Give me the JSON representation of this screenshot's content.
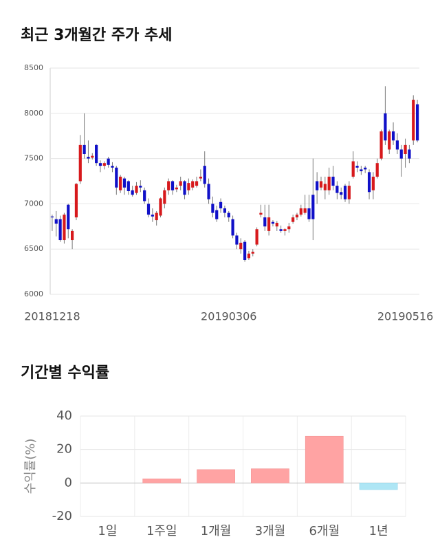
{
  "chart_data": [
    {
      "type": "candlestick",
      "title": "최근 3개월간 주가 추세",
      "categories": [
        "20181218",
        null,
        null,
        null,
        null,
        null,
        null,
        null,
        null,
        null,
        null,
        null,
        null,
        null,
        null,
        null,
        null,
        null,
        null,
        null,
        null,
        null,
        null,
        null,
        null,
        null,
        null,
        null,
        null,
        null,
        null,
        null,
        null,
        null,
        null,
        null,
        null,
        null,
        null,
        null,
        null,
        null,
        null,
        null,
        "20190306",
        null,
        null,
        null,
        null,
        null,
        null,
        null,
        null,
        null,
        null,
        null,
        null,
        null,
        null,
        null,
        null,
        null,
        null,
        null,
        null,
        null,
        null,
        null,
        null,
        null,
        null,
        null,
        null,
        null,
        null,
        null,
        null,
        null,
        null,
        null,
        null,
        null,
        null,
        null,
        null,
        null,
        null,
        null,
        "20190516",
        null,
        null,
        null
      ],
      "open": [
        6860,
        6830,
        6830,
        6600,
        6990,
        6600,
        6850,
        7250,
        7650,
        7520,
        7510,
        7650,
        7450,
        7420,
        7500,
        7420,
        7400,
        7150,
        7280,
        7250,
        7150,
        7120,
        7200,
        7150,
        7000,
        6880,
        6820,
        6870,
        7000,
        7150,
        7250,
        7160,
        7200,
        7250,
        7150,
        7180,
        7200,
        7280,
        7420,
        7220,
        7000,
        6930,
        7020,
        6950,
        6900,
        6830,
        6650,
        6500,
        6580,
        6400,
        6450,
        6550,
        6880,
        6850,
        6700,
        6800,
        6750,
        6720,
        6700,
        6720,
        6800,
        6850,
        6880,
        6900,
        6950,
        7100,
        7250,
        7180,
        7150,
        7150,
        7300,
        7200,
        7130,
        7200,
        7050,
        7300,
        7420,
        7380,
        7400,
        7350,
        7150,
        7300,
        7500,
        8000,
        7600,
        7800,
        7700,
        7600,
        7550,
        7600,
        7700,
        8100
      ],
      "high": [
        6880,
        6920,
        6870,
        6900,
        7000,
        6720,
        7230,
        7760,
        8000,
        7700,
        7560,
        7660,
        7480,
        7470,
        7520,
        7460,
        7420,
        7320,
        7300,
        7260,
        7200,
        7240,
        7260,
        7180,
        7060,
        6950,
        6920,
        7070,
        7180,
        7280,
        7260,
        7210,
        7300,
        7260,
        7280,
        7270,
        7300,
        7380,
        7580,
        7280,
        7080,
        6980,
        7060,
        6980,
        6920,
        6870,
        6680,
        6620,
        6600,
        6480,
        6500,
        6740,
        6990,
        6990,
        6990,
        6820,
        6810,
        6760,
        6730,
        6790,
        6880,
        6900,
        6990,
        7100,
        7100,
        7500,
        7350,
        7300,
        7300,
        7400,
        7420,
        7250,
        7180,
        7220,
        7250,
        7580,
        7470,
        7420,
        7420,
        7380,
        7350,
        7500,
        7820,
        8300,
        7820,
        7900,
        7780,
        7650,
        7720,
        7650,
        8200,
        8150
      ],
      "low": [
        6700,
        6640,
        6580,
        6560,
        6620,
        6500,
        6820,
        7220,
        7500,
        7450,
        7490,
        7420,
        7350,
        7380,
        7400,
        7350,
        7100,
        7120,
        7100,
        7100,
        7080,
        7100,
        7130,
        7000,
        6850,
        6800,
        6760,
        6850,
        6950,
        7100,
        7100,
        7130,
        7150,
        7050,
        7100,
        7150,
        7180,
        7250,
        7180,
        7000,
        6850,
        6800,
        6900,
        6850,
        6800,
        6620,
        6500,
        6450,
        6360,
        6380,
        6420,
        6530,
        6850,
        6700,
        6650,
        6750,
        6700,
        6680,
        6650,
        6680,
        6780,
        6820,
        6860,
        6880,
        6800,
        6600,
        7000,
        7150,
        7050,
        7100,
        7150,
        7050,
        7050,
        7020,
        7000,
        7280,
        7350,
        7320,
        7340,
        7050,
        7050,
        7280,
        7480,
        7650,
        7550,
        7650,
        7550,
        7300,
        7400,
        7450,
        7650,
        7680
      ],
      "close": [
        6850,
        6780,
        6600,
        6880,
        6720,
        6700,
        7220,
        7650,
        7550,
        7500,
        7530,
        7450,
        7420,
        7450,
        7430,
        7400,
        7180,
        7300,
        7180,
        7140,
        7100,
        7200,
        7180,
        7030,
        6880,
        6860,
        6900,
        7060,
        7150,
        7250,
        7150,
        7180,
        7250,
        7100,
        7230,
        7250,
        7250,
        7300,
        7220,
        7050,
        6900,
        6830,
        6950,
        6900,
        6850,
        6650,
        6550,
        6570,
        6380,
        6450,
        6470,
        6720,
        6900,
        6750,
        6850,
        6780,
        6790,
        6700,
        6720,
        6750,
        6850,
        6880,
        6950,
        6950,
        6830,
        6830,
        7150,
        7250,
        7220,
        7300,
        7200,
        7120,
        7100,
        7050,
        7200,
        7470,
        7400,
        7360,
        7380,
        7130,
        7300,
        7450,
        7800,
        7700,
        7800,
        7700,
        7600,
        7500,
        7650,
        7500,
        8150,
        7700
      ],
      "up_color": "#d7191c",
      "down_color": "#1010c8",
      "ylim": [
        6000,
        8500
      ],
      "yticks": [
        6000,
        6500,
        7000,
        7500,
        8000,
        8500
      ],
      "grid": true
    },
    {
      "type": "bar",
      "title": "기간별 수익률",
      "ylabel": "수익률(%)",
      "categories": [
        "1일",
        "1주일",
        "1개월",
        "3개월",
        "6개월",
        "1년"
      ],
      "values": [
        0,
        2.5,
        8,
        8.5,
        28,
        -4
      ],
      "positive_color": "#ffa3a3",
      "negative_color": "#aee6f5",
      "ylim": [
        -20,
        40
      ],
      "yticks": [
        -20,
        0,
        20,
        40
      ],
      "grid": true
    }
  ]
}
